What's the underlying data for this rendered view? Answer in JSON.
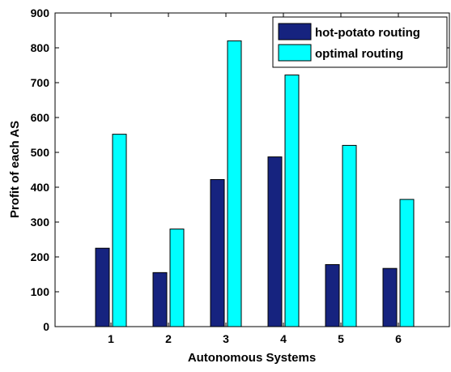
{
  "chart_data": {
    "type": "bar",
    "title": "",
    "xlabel": "Autonomous Systems",
    "ylabel": "Profit of each AS",
    "categories": [
      "1",
      "2",
      "3",
      "4",
      "5",
      "6"
    ],
    "ylim": [
      0,
      900
    ],
    "yticks": [
      "0",
      "100",
      "200",
      "300",
      "400",
      "500",
      "600",
      "700",
      "800",
      "900"
    ],
    "grid": false,
    "legend_position": "top-right",
    "series": [
      {
        "name": "hot-potato routing",
        "color": "#16237f",
        "values": [
          225,
          155,
          422,
          487,
          178,
          167
        ]
      },
      {
        "name": "optimal routing",
        "color": "#00ffff",
        "values": [
          552,
          280,
          820,
          722,
          520,
          365
        ]
      }
    ]
  }
}
